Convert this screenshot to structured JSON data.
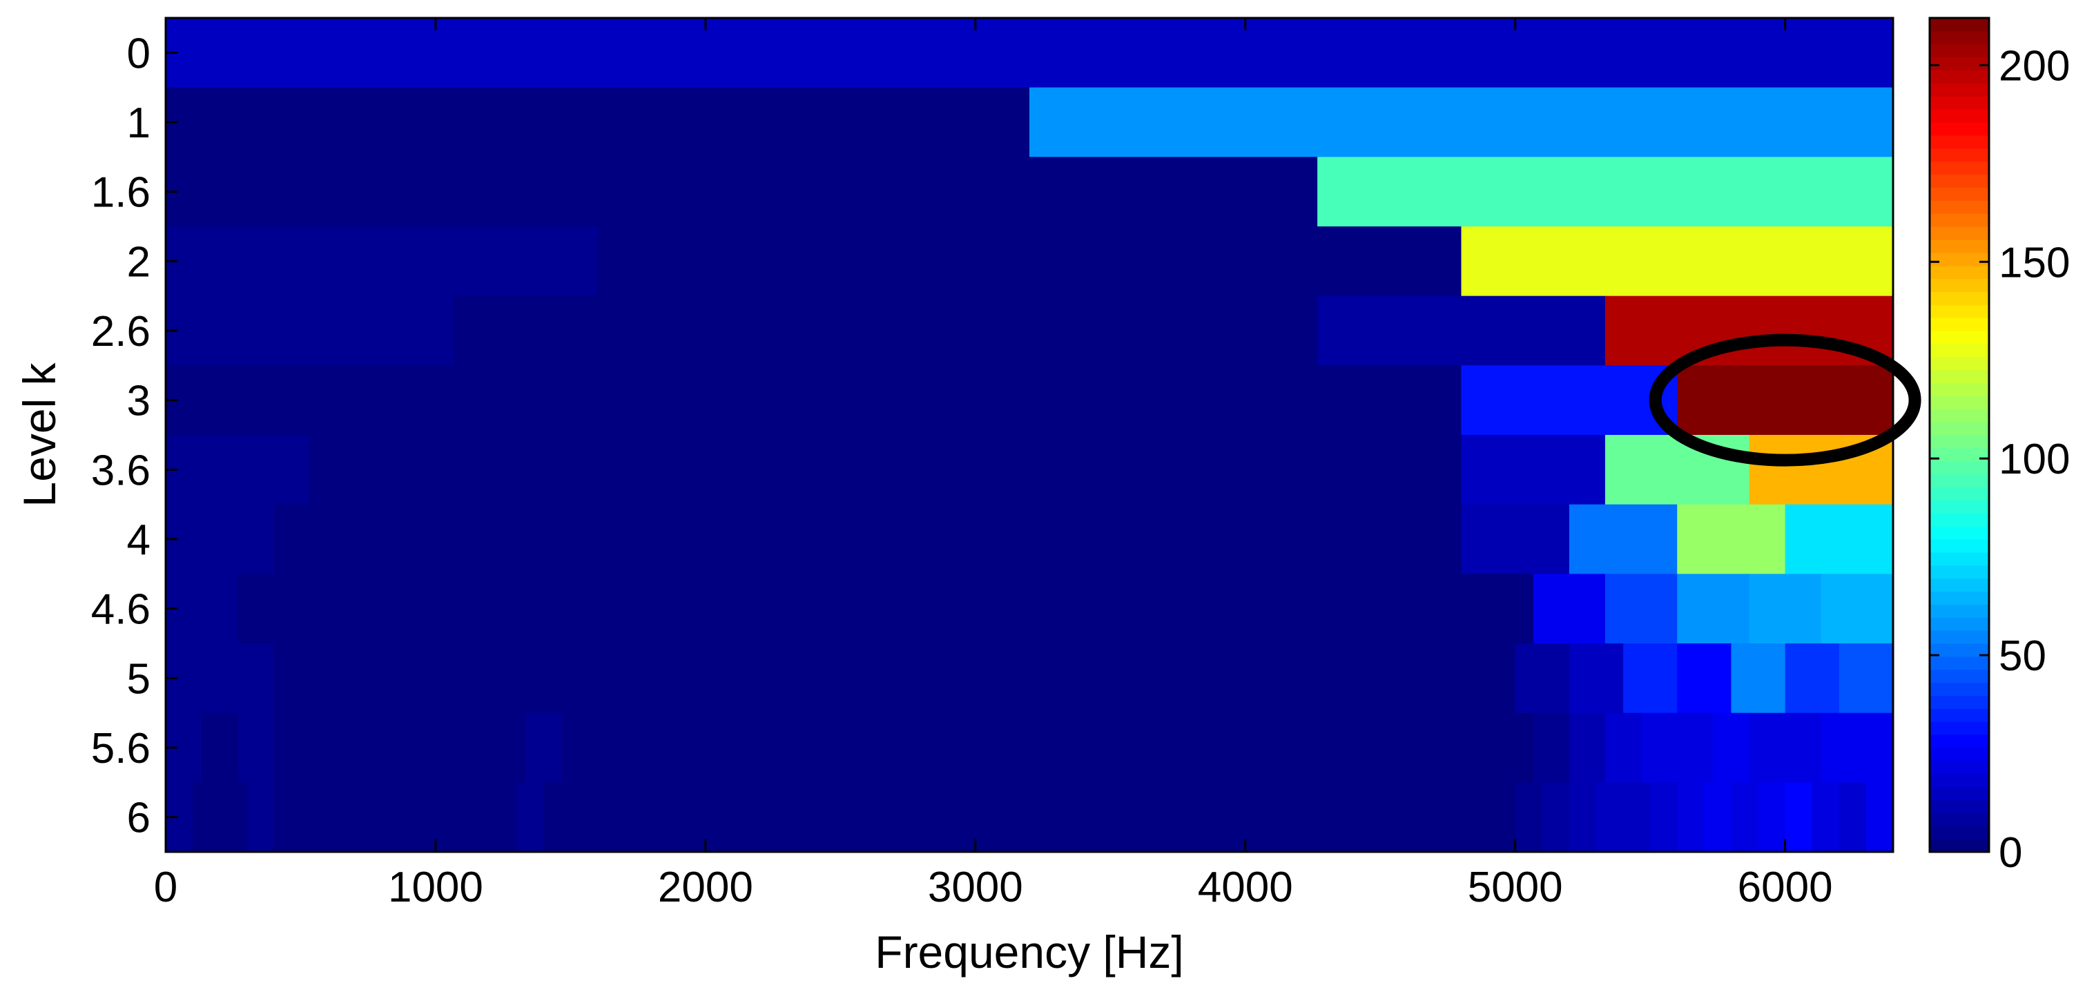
{
  "chart_data": {
    "type": "heatmap",
    "title": "",
    "xlabel": "Frequency [Hz]",
    "ylabel": "Level k",
    "xlim": [
      0,
      6400
    ],
    "x_ticks": [
      0,
      1000,
      2000,
      3000,
      4000,
      5000,
      6000
    ],
    "y_categories": [
      "0",
      "1",
      "1.6",
      "2",
      "2.6",
      "3",
      "3.6",
      "4",
      "4.6",
      "5",
      "5.6",
      "6"
    ],
    "colorbar": {
      "colormap": "jet",
      "range": [
        0,
        212
      ],
      "ticks": [
        0,
        50,
        100,
        150,
        200
      ]
    },
    "rows": [
      {
        "level": "0",
        "segments": [
          [
            0,
            6400,
            14
          ]
        ]
      },
      {
        "level": "1",
        "segments": [
          [
            0,
            3200,
            2
          ],
          [
            3200,
            6400,
            58
          ]
        ]
      },
      {
        "level": "1.6",
        "segments": [
          [
            0,
            4267,
            2
          ],
          [
            4267,
            6400,
            95
          ]
        ]
      },
      {
        "level": "2",
        "segments": [
          [
            0,
            1600,
            5
          ],
          [
            1600,
            4800,
            2
          ],
          [
            4800,
            6400,
            128
          ]
        ]
      },
      {
        "level": "2.6",
        "segments": [
          [
            0,
            1067,
            5
          ],
          [
            1067,
            4267,
            2
          ],
          [
            4267,
            5333,
            8
          ],
          [
            5333,
            6400,
            200
          ]
        ]
      },
      {
        "level": "3",
        "segments": [
          [
            0,
            4800,
            2
          ],
          [
            4800,
            5600,
            32
          ],
          [
            5600,
            6400,
            210
          ]
        ]
      },
      {
        "level": "3.6",
        "segments": [
          [
            0,
            533,
            5
          ],
          [
            533,
            4800,
            2
          ],
          [
            4800,
            5333,
            16
          ],
          [
            5333,
            5867,
            100
          ],
          [
            5867,
            6400,
            148
          ]
        ]
      },
      {
        "level": "4",
        "segments": [
          [
            0,
            400,
            5
          ],
          [
            400,
            4800,
            2
          ],
          [
            4800,
            5200,
            10
          ],
          [
            5200,
            5600,
            52
          ],
          [
            5600,
            6000,
            110
          ],
          [
            6000,
            6400,
            76
          ]
        ]
      },
      {
        "level": "4.6",
        "segments": [
          [
            0,
            267,
            5
          ],
          [
            267,
            5067,
            2
          ],
          [
            5067,
            5333,
            24
          ],
          [
            5333,
            5600,
            42
          ],
          [
            5600,
            5867,
            58
          ],
          [
            5867,
            6133,
            62
          ],
          [
            6133,
            6400,
            66
          ]
        ]
      },
      {
        "level": "5",
        "segments": [
          [
            0,
            400,
            5
          ],
          [
            400,
            5000,
            2
          ],
          [
            5000,
            5200,
            8
          ],
          [
            5200,
            5400,
            14
          ],
          [
            5400,
            5600,
            34
          ],
          [
            5600,
            5800,
            28
          ],
          [
            5800,
            6000,
            54
          ],
          [
            6000,
            6200,
            38
          ],
          [
            6200,
            6400,
            44
          ]
        ]
      },
      {
        "level": "5.6",
        "segments": [
          [
            0,
            133,
            5
          ],
          [
            133,
            267,
            3
          ],
          [
            267,
            400,
            5
          ],
          [
            400,
            1333,
            2
          ],
          [
            1333,
            1467,
            5
          ],
          [
            1467,
            5067,
            2
          ],
          [
            5067,
            5200,
            6
          ],
          [
            5200,
            5333,
            10
          ],
          [
            5333,
            5467,
            18
          ],
          [
            5467,
            5600,
            20
          ],
          [
            5600,
            5733,
            22
          ],
          [
            5733,
            5867,
            26
          ],
          [
            5867,
            6000,
            22
          ],
          [
            6000,
            6133,
            20
          ],
          [
            6133,
            6267,
            24
          ],
          [
            6267,
            6400,
            26
          ]
        ]
      },
      {
        "level": "6",
        "segments": [
          [
            0,
            100,
            5
          ],
          [
            100,
            300,
            3
          ],
          [
            300,
            400,
            5
          ],
          [
            400,
            1300,
            2
          ],
          [
            1300,
            1400,
            5
          ],
          [
            1400,
            5000,
            2
          ],
          [
            5000,
            5100,
            6
          ],
          [
            5100,
            5200,
            9
          ],
          [
            5200,
            5300,
            12
          ],
          [
            5300,
            5400,
            16
          ],
          [
            5400,
            5500,
            14
          ],
          [
            5500,
            5600,
            18
          ],
          [
            5600,
            5700,
            22
          ],
          [
            5700,
            5800,
            24
          ],
          [
            5800,
            5900,
            20
          ],
          [
            5900,
            6000,
            24
          ],
          [
            6000,
            6100,
            28
          ],
          [
            6100,
            6200,
            22
          ],
          [
            6200,
            6300,
            18
          ],
          [
            6300,
            6400,
            24
          ]
        ]
      }
    ],
    "annotations": [
      {
        "shape": "ellipse",
        "center_x": 6000,
        "center_level": "3",
        "color": "#000000"
      }
    ]
  }
}
